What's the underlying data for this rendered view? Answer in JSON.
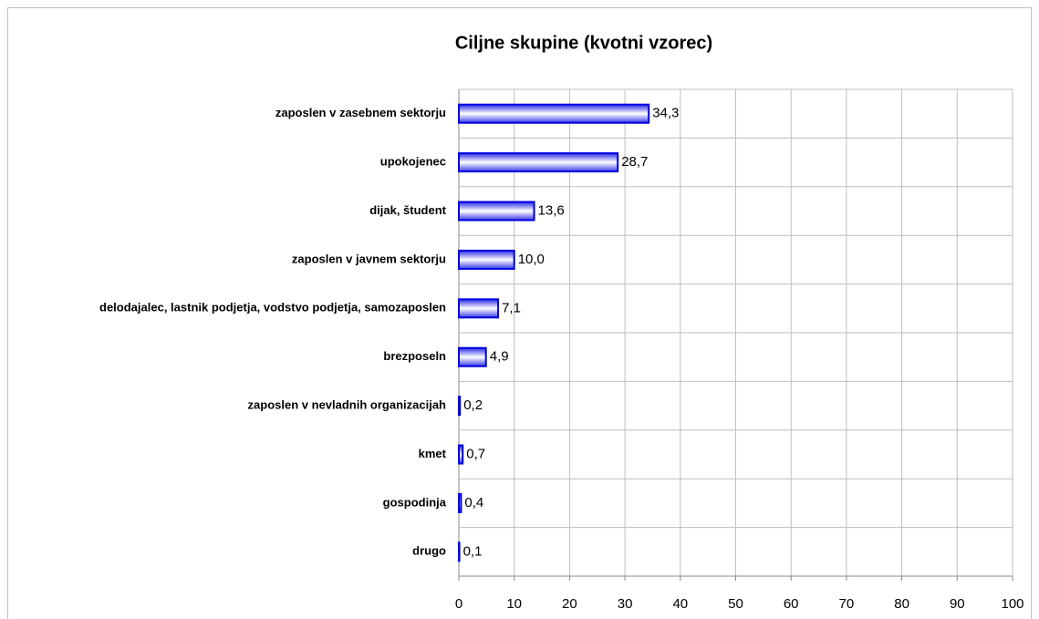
{
  "chart_data": {
    "type": "bar",
    "orientation": "horizontal",
    "title": "Ciljne skupine (kvotni vzorec)",
    "categories": [
      "zaposlen v zasebnem sektorju",
      "upokojenec",
      "dijak, študent",
      "zaposlen v javnem sektorju",
      "delodajalec, lastnik podjetja, vodstvo podjetja, samozaposlen",
      "brezposeln",
      "zaposlen v nevladnih organizacijah",
      "kmet",
      "gospodinja",
      "drugo"
    ],
    "values": [
      34.3,
      28.7,
      13.6,
      10.0,
      7.1,
      4.9,
      0.2,
      0.7,
      0.4,
      0.1
    ],
    "value_labels": [
      "34,3",
      "28,7",
      "13,6",
      "10,0",
      "7,1",
      "4,9",
      "0,2",
      "0,7",
      "0,4",
      "0,1"
    ],
    "color": "#0000e0",
    "xlim": [
      0,
      100
    ],
    "xticks": [
      0,
      10,
      20,
      30,
      40,
      50,
      60,
      70,
      80,
      90,
      100
    ],
    "grid": true
  }
}
